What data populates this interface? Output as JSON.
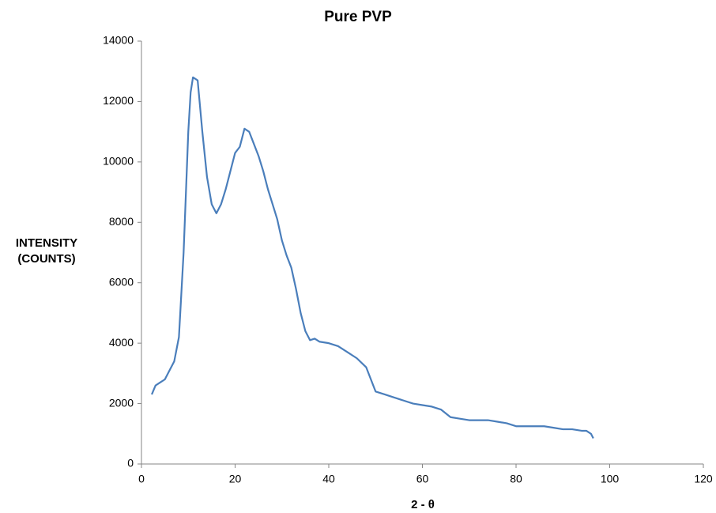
{
  "chart_data": {
    "type": "line",
    "title": "Pure PVP",
    "x_label": "2 - θ",
    "y_label": "INTENSITY (COUNTS)",
    "xlim": [
      0,
      120
    ],
    "xticks": [
      0,
      20,
      40,
      60,
      80,
      100,
      120
    ],
    "ylim": [
      0,
      14000
    ],
    "yticks": [
      0,
      2000,
      4000,
      6000,
      8000,
      10000,
      12000,
      14000
    ],
    "grid": false,
    "x": [
      2.2,
      3,
      4,
      5,
      6,
      7,
      8,
      9,
      10,
      10.5,
      11,
      12,
      13,
      14,
      15,
      16,
      17,
      18,
      19,
      20,
      21,
      22,
      23,
      24,
      25,
      26,
      27,
      28,
      29,
      30,
      31,
      32,
      33,
      34,
      35,
      36,
      37,
      38,
      40,
      42,
      44,
      46,
      48,
      50,
      52,
      54,
      56,
      58,
      60,
      62,
      64,
      66,
      68,
      70,
      72,
      74,
      76,
      78,
      80,
      82,
      84,
      86,
      88,
      90,
      92,
      94,
      95,
      96,
      96.5
    ],
    "series": [
      {
        "color": "#4a7ebb",
        "values": [
          2300,
          2600,
          2700,
          2800,
          3100,
          3400,
          4200,
          7000,
          11000,
          12300,
          12800,
          12700,
          11000,
          9500,
          8600,
          8300,
          8600,
          9100,
          9700,
          10300,
          10500,
          11100,
          11000,
          10600,
          10200,
          9700,
          9100,
          8600,
          8100,
          7400,
          6900,
          6500,
          5800,
          5000,
          4400,
          4100,
          4150,
          4050,
          4000,
          3900,
          3700,
          3500,
          3200,
          2400,
          2300,
          2200,
          2100,
          2000,
          1950,
          1900,
          1800,
          1550,
          1500,
          1450,
          1450,
          1450,
          1400,
          1350,
          1250,
          1250,
          1250,
          1250,
          1200,
          1150,
          1150,
          1100,
          1100,
          1000,
          850
        ]
      }
    ]
  }
}
